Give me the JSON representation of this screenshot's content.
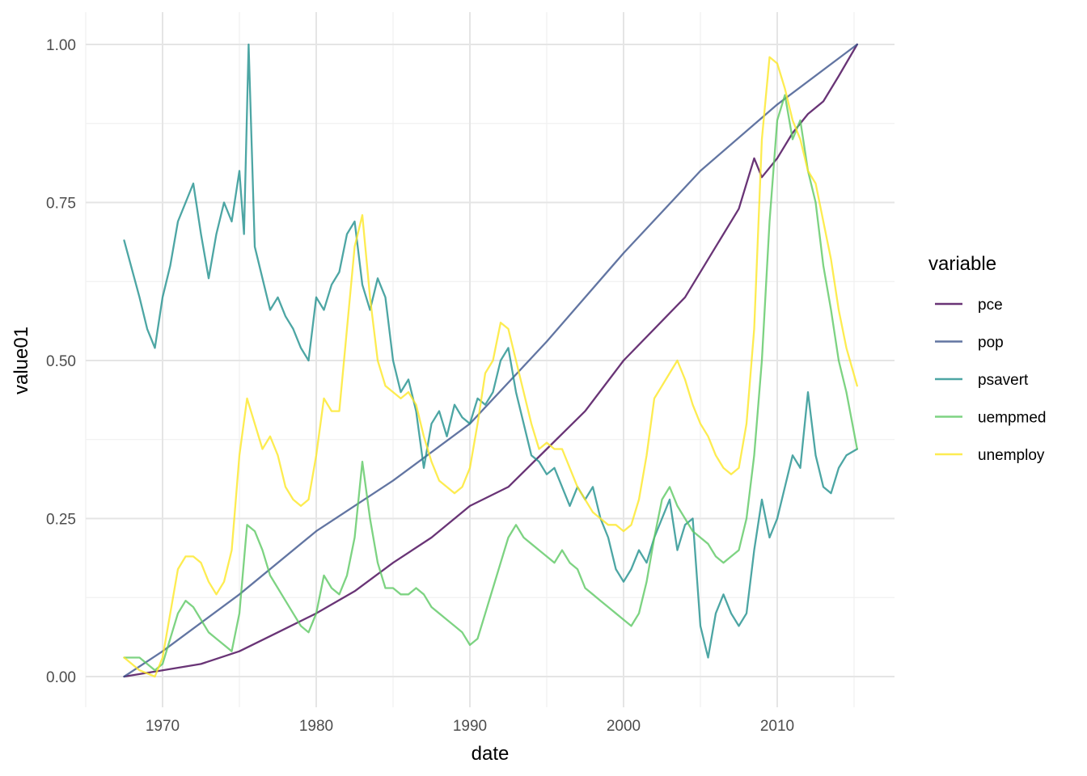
{
  "chart_data": {
    "type": "line",
    "xlabel": "date",
    "ylabel": "value01",
    "xlim": [
      1967.5,
      2015.3
    ],
    "ylim": [
      0,
      1
    ],
    "x_ticks": [
      1970,
      1980,
      1990,
      2000,
      2010
    ],
    "x_tick_labels": [
      "1970",
      "1980",
      "1990",
      "2000",
      "2010"
    ],
    "y_ticks": [
      0,
      0.25,
      0.5,
      0.75,
      1
    ],
    "y_tick_labels": [
      "0.00",
      "0.25",
      "0.50",
      "0.75",
      "1.00"
    ],
    "grid": true,
    "legend": {
      "title": "variable",
      "placement": "right"
    },
    "series": [
      {
        "name": "pce",
        "color": "#440154",
        "x": [
          1967.5,
          1970,
          1972.5,
          1975,
          1977.5,
          1980,
          1982.5,
          1985,
          1987.5,
          1990,
          1992.5,
          1995,
          1997.5,
          2000,
          2002,
          2004,
          2006,
          2007.5,
          2008.5,
          2009,
          2010,
          2011,
          2012,
          2013,
          2014,
          2015.2
        ],
        "values": [
          0.0,
          0.01,
          0.02,
          0.04,
          0.07,
          0.1,
          0.135,
          0.18,
          0.22,
          0.27,
          0.3,
          0.36,
          0.42,
          0.5,
          0.55,
          0.6,
          0.68,
          0.74,
          0.82,
          0.79,
          0.82,
          0.86,
          0.89,
          0.91,
          0.95,
          1.0
        ]
      },
      {
        "name": "pop",
        "color": "#3b528b",
        "x": [
          1967.5,
          1970,
          1975,
          1980,
          1985,
          1990,
          1995,
          2000,
          2005,
          2010,
          2015.2
        ],
        "values": [
          0.0,
          0.04,
          0.13,
          0.23,
          0.31,
          0.4,
          0.53,
          0.67,
          0.8,
          0.905,
          1.0
        ]
      },
      {
        "name": "psavert",
        "color": "#21908d",
        "x": [
          1967.5,
          1968.5,
          1969,
          1969.5,
          1970,
          1970.5,
          1971,
          1971.5,
          1972,
          1972.5,
          1973,
          1973.5,
          1974,
          1974.5,
          1975,
          1975.3,
          1975.6,
          1976,
          1976.5,
          1977,
          1977.5,
          1978,
          1978.5,
          1979,
          1979.5,
          1980,
          1980.5,
          1981,
          1981.5,
          1982,
          1982.5,
          1983,
          1983.5,
          1984,
          1984.5,
          1985,
          1985.5,
          1986,
          1986.5,
          1987,
          1987.5,
          1988,
          1988.5,
          1989,
          1989.5,
          1990,
          1990.5,
          1991,
          1991.5,
          1992,
          1992.5,
          1993,
          1993.5,
          1994,
          1994.5,
          1995,
          1995.5,
          1996,
          1996.5,
          1997,
          1997.5,
          1998,
          1998.5,
          1999,
          1999.5,
          2000,
          2000.5,
          2001,
          2001.5,
          2002,
          2002.5,
          2003,
          2003.5,
          2004,
          2004.5,
          2005,
          2005.5,
          2006,
          2006.5,
          2007,
          2007.5,
          2008,
          2008.5,
          2009,
          2009.5,
          2010,
          2010.5,
          2011,
          2011.5,
          2012,
          2012.5,
          2013,
          2013.5,
          2014,
          2014.5,
          2015.2
        ],
        "values": [
          0.69,
          0.6,
          0.55,
          0.52,
          0.6,
          0.65,
          0.72,
          0.75,
          0.78,
          0.7,
          0.63,
          0.7,
          0.75,
          0.72,
          0.8,
          0.7,
          1.0,
          0.68,
          0.63,
          0.58,
          0.6,
          0.57,
          0.55,
          0.52,
          0.5,
          0.6,
          0.58,
          0.62,
          0.64,
          0.7,
          0.72,
          0.62,
          0.58,
          0.63,
          0.6,
          0.5,
          0.45,
          0.47,
          0.42,
          0.33,
          0.4,
          0.42,
          0.38,
          0.43,
          0.41,
          0.4,
          0.44,
          0.43,
          0.45,
          0.5,
          0.52,
          0.45,
          0.4,
          0.35,
          0.34,
          0.32,
          0.33,
          0.3,
          0.27,
          0.3,
          0.28,
          0.3,
          0.25,
          0.22,
          0.17,
          0.15,
          0.17,
          0.2,
          0.18,
          0.22,
          0.25,
          0.28,
          0.2,
          0.24,
          0.25,
          0.08,
          0.03,
          0.1,
          0.13,
          0.1,
          0.08,
          0.1,
          0.2,
          0.28,
          0.22,
          0.25,
          0.3,
          0.35,
          0.33,
          0.45,
          0.35,
          0.3,
          0.29,
          0.33,
          0.35,
          0.36
        ]
      },
      {
        "name": "uempmed",
        "color": "#5dc863",
        "x": [
          1967.5,
          1968.5,
          1969,
          1969.5,
          1970,
          1970.5,
          1971,
          1971.5,
          1972,
          1972.5,
          1973,
          1973.5,
          1974,
          1974.5,
          1975,
          1975.5,
          1976,
          1976.5,
          1977,
          1977.5,
          1978,
          1978.5,
          1979,
          1979.5,
          1980,
          1980.5,
          1981,
          1981.5,
          1982,
          1982.5,
          1983,
          1983.5,
          1984,
          1984.5,
          1985,
          1985.5,
          1986,
          1986.5,
          1987,
          1987.5,
          1988,
          1988.5,
          1989,
          1989.5,
          1990,
          1990.5,
          1991,
          1991.5,
          1992,
          1992.5,
          1993,
          1993.5,
          1994,
          1994.5,
          1995,
          1995.5,
          1996,
          1996.5,
          1997,
          1997.5,
          1998,
          1998.5,
          1999,
          1999.5,
          2000,
          2000.5,
          2001,
          2001.5,
          2002,
          2002.5,
          2003,
          2003.5,
          2004,
          2004.5,
          2005,
          2005.5,
          2006,
          2006.5,
          2007,
          2007.5,
          2008,
          2008.5,
          2009,
          2009.5,
          2010,
          2010.5,
          2011,
          2011.5,
          2012,
          2012.5,
          2013,
          2013.5,
          2014,
          2014.5,
          2015.2
        ],
        "values": [
          0.03,
          0.03,
          0.02,
          0.01,
          0.02,
          0.06,
          0.1,
          0.12,
          0.11,
          0.09,
          0.07,
          0.06,
          0.05,
          0.04,
          0.1,
          0.24,
          0.23,
          0.2,
          0.16,
          0.14,
          0.12,
          0.1,
          0.08,
          0.07,
          0.1,
          0.16,
          0.14,
          0.13,
          0.16,
          0.22,
          0.34,
          0.25,
          0.18,
          0.14,
          0.14,
          0.13,
          0.13,
          0.14,
          0.13,
          0.11,
          0.1,
          0.09,
          0.08,
          0.07,
          0.05,
          0.06,
          0.1,
          0.14,
          0.18,
          0.22,
          0.24,
          0.22,
          0.21,
          0.2,
          0.19,
          0.18,
          0.2,
          0.18,
          0.17,
          0.14,
          0.13,
          0.12,
          0.11,
          0.1,
          0.09,
          0.08,
          0.1,
          0.15,
          0.22,
          0.28,
          0.3,
          0.27,
          0.25,
          0.23,
          0.22,
          0.21,
          0.19,
          0.18,
          0.19,
          0.2,
          0.25,
          0.35,
          0.5,
          0.72,
          0.88,
          0.92,
          0.85,
          0.88,
          0.8,
          0.75,
          0.65,
          0.58,
          0.5,
          0.45,
          0.36
        ]
      },
      {
        "name": "unemploy",
        "color": "#fde725",
        "x": [
          1967.5,
          1968.5,
          1969,
          1969.5,
          1970,
          1970.5,
          1971,
          1971.5,
          1972,
          1972.5,
          1973,
          1973.5,
          1974,
          1974.5,
          1975,
          1975.5,
          1976,
          1976.5,
          1977,
          1977.5,
          1978,
          1978.5,
          1979,
          1979.5,
          1980,
          1980.5,
          1981,
          1981.5,
          1982,
          1982.5,
          1983,
          1983.5,
          1984,
          1984.5,
          1985,
          1985.5,
          1986,
          1986.5,
          1987,
          1987.5,
          1988,
          1988.5,
          1989,
          1989.5,
          1990,
          1990.5,
          1991,
          1991.5,
          1992,
          1992.5,
          1993,
          1993.5,
          1994,
          1994.5,
          1995,
          1995.5,
          1996,
          1996.5,
          1997,
          1997.5,
          1998,
          1998.5,
          1999,
          1999.5,
          2000,
          2000.5,
          2001,
          2001.5,
          2002,
          2002.5,
          2003,
          2003.5,
          2004,
          2004.5,
          2005,
          2005.5,
          2006,
          2006.5,
          2007,
          2007.5,
          2008,
          2008.5,
          2009,
          2009.5,
          2010,
          2010.5,
          2011,
          2011.5,
          2012,
          2012.5,
          2013,
          2013.5,
          2014,
          2014.5,
          2015.2
        ],
        "values": [
          0.03,
          0.01,
          0.005,
          0.0,
          0.03,
          0.1,
          0.17,
          0.19,
          0.19,
          0.18,
          0.15,
          0.13,
          0.15,
          0.2,
          0.35,
          0.44,
          0.4,
          0.36,
          0.38,
          0.35,
          0.3,
          0.28,
          0.27,
          0.28,
          0.35,
          0.44,
          0.42,
          0.42,
          0.55,
          0.68,
          0.73,
          0.6,
          0.5,
          0.46,
          0.45,
          0.44,
          0.45,
          0.43,
          0.38,
          0.34,
          0.31,
          0.3,
          0.29,
          0.3,
          0.33,
          0.4,
          0.48,
          0.5,
          0.56,
          0.55,
          0.5,
          0.45,
          0.4,
          0.36,
          0.37,
          0.36,
          0.36,
          0.33,
          0.3,
          0.28,
          0.26,
          0.25,
          0.24,
          0.24,
          0.23,
          0.24,
          0.28,
          0.35,
          0.44,
          0.46,
          0.48,
          0.5,
          0.47,
          0.43,
          0.4,
          0.38,
          0.35,
          0.33,
          0.32,
          0.33,
          0.4,
          0.55,
          0.85,
          0.98,
          0.97,
          0.93,
          0.88,
          0.85,
          0.8,
          0.78,
          0.72,
          0.66,
          0.58,
          0.52,
          0.46
        ]
      }
    ]
  }
}
